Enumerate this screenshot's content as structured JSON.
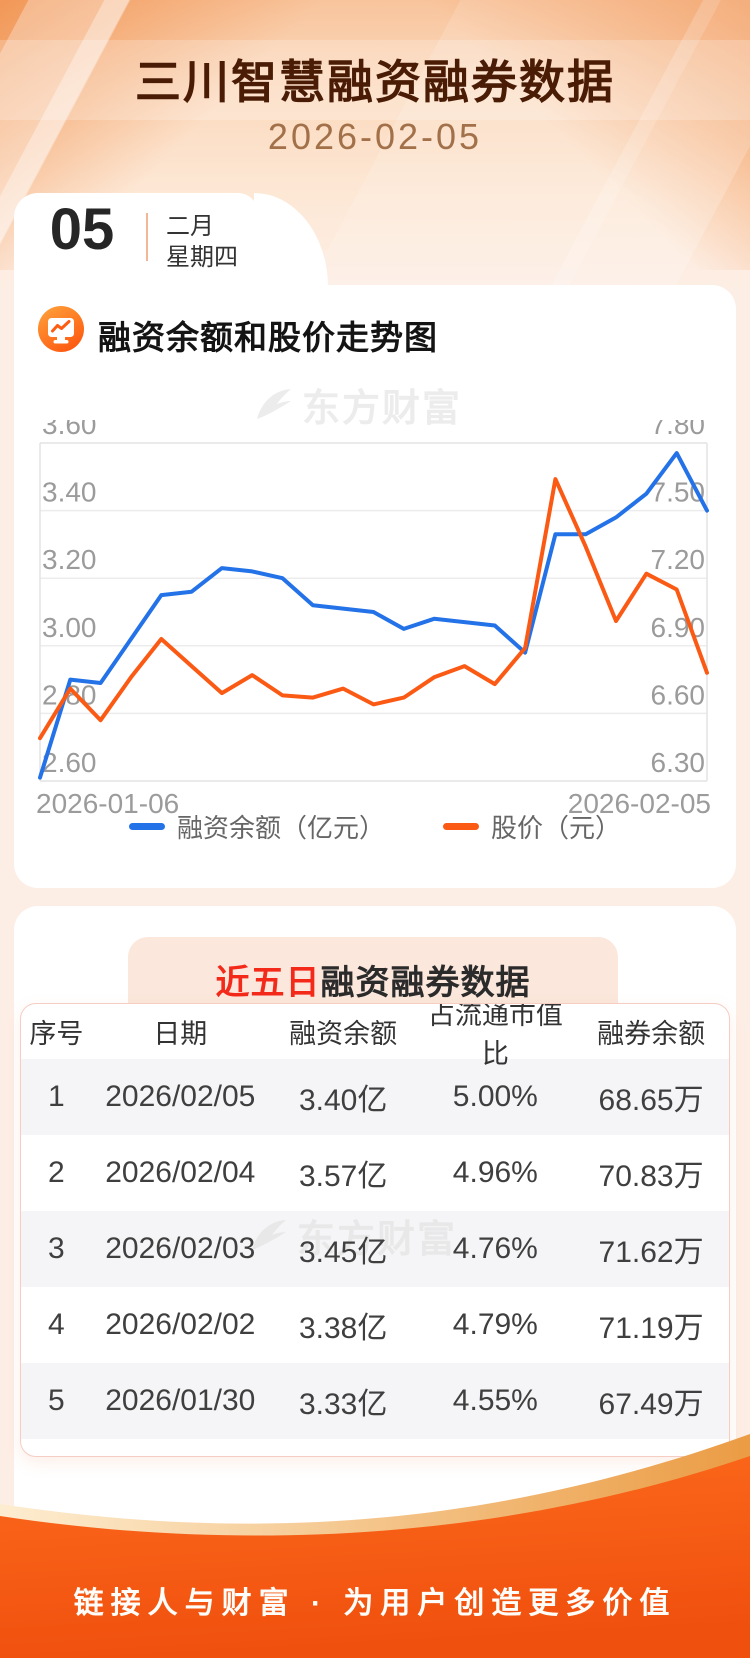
{
  "header": {
    "title": "三川智慧融资融券数据",
    "date": "2026-02-05",
    "day_number": "05",
    "month_label": "二月",
    "weekday_label": "星期四"
  },
  "chart_section": {
    "title": "融资余额和股价走势图",
    "icon": "chart-monitor-icon",
    "watermark": "东方财富",
    "legend": [
      {
        "label": "融资余额（亿元）",
        "color": "#2472e8"
      },
      {
        "label": "股价（元）",
        "color": "#fb5a15"
      }
    ]
  },
  "chart_data": {
    "type": "line",
    "grid": true,
    "x_axis_labels": [
      "2026-01-06",
      "2026-02-05"
    ],
    "left_axis": {
      "min": 2.6,
      "max": 3.6,
      "ticks": [
        "3.60",
        "3.40",
        "3.20",
        "3.00",
        "2.80",
        "2.60"
      ]
    },
    "right_axis": {
      "min": 6.3,
      "max": 7.8,
      "ticks": [
        "7.80",
        "7.50",
        "7.20",
        "6.90",
        "6.60",
        "6.30"
      ]
    },
    "series": [
      {
        "name": "融资余额（亿元）",
        "axis": "left",
        "color": "#2472e8",
        "values": [
          2.61,
          2.9,
          2.89,
          3.02,
          3.15,
          3.16,
          3.23,
          3.22,
          3.2,
          3.12,
          3.11,
          3.1,
          3.05,
          3.08,
          3.07,
          3.06,
          2.98,
          3.33,
          3.33,
          3.38,
          3.45,
          3.57,
          3.4
        ]
      },
      {
        "name": "股价（元）",
        "axis": "right",
        "color": "#fb5a15",
        "values": [
          6.49,
          6.71,
          6.57,
          6.76,
          6.93,
          6.81,
          6.69,
          6.77,
          6.68,
          6.67,
          6.71,
          6.64,
          6.67,
          6.76,
          6.81,
          6.73,
          6.89,
          7.64,
          7.34,
          7.01,
          7.22,
          7.15,
          6.78
        ]
      }
    ]
  },
  "table_section": {
    "title_highlight": "近五日",
    "title_rest": "融资融券数据",
    "watermark": "东方财富",
    "columns": [
      "序号",
      "日期",
      "融资余额",
      "占流通市值比",
      "融券余额"
    ],
    "rows": [
      [
        "1",
        "2026/02/05",
        "3.40亿",
        "5.00%",
        "68.65万"
      ],
      [
        "2",
        "2026/02/04",
        "3.57亿",
        "4.96%",
        "70.83万"
      ],
      [
        "3",
        "2026/02/03",
        "3.45亿",
        "4.76%",
        "71.62万"
      ],
      [
        "4",
        "2026/02/02",
        "3.38亿",
        "4.79%",
        "71.19万"
      ],
      [
        "5",
        "2026/01/30",
        "3.33亿",
        "4.55%",
        "67.49万"
      ]
    ]
  },
  "footer": {
    "slogan": "链接人与财富 · 为用户创造更多价值"
  },
  "colors": {
    "page_bg": "#fdeee5",
    "title_brown": "#4a1c05",
    "banner_red": "#f3291a",
    "line_blue": "#2472e8",
    "line_orange": "#fb5a15",
    "footer_orange_top": "#fc6a1c",
    "footer_orange_bottom": "#f0500e",
    "gold_band_light": "#fdedd0",
    "gold_band_dark": "#eb9c44"
  }
}
